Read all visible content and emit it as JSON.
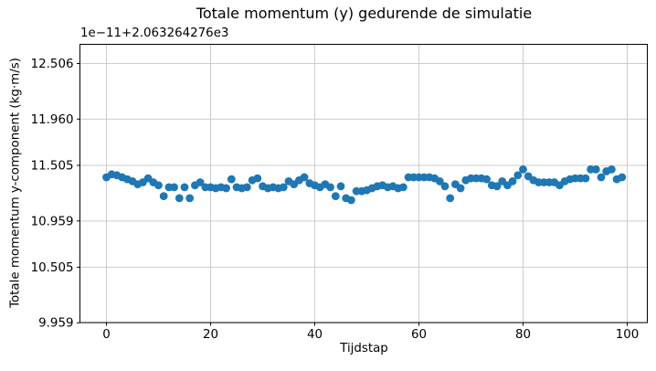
{
  "title": "Totale momentum (y) gedurende de simulatie",
  "offset_text": "1e−11+2.063264276e3",
  "xlabel": "Tijdstap",
  "ylabel": "Totale momentum y-component (kg·m/s)",
  "colors": {
    "marker": "#1f77b4",
    "grid": "#cccccc",
    "spine": "#000000",
    "background": "#ffffff"
  },
  "chart_data": {
    "type": "scatter",
    "title": "Totale momentum (y) gedurende de simulatie",
    "xlabel": "Tijdstap",
    "ylabel": "Totale momentum y-component (kg·m/s)",
    "offset_note": "1e−11+2.063264276e3",
    "grid": true,
    "legend": "none",
    "marker": "circle",
    "xticks": [
      0,
      20,
      40,
      60,
      80,
      100
    ],
    "ytick_labels": [
      "12.506",
      "11.960",
      "11.505",
      "10.959",
      "10.505",
      "9.959"
    ],
    "xlim": [
      -5.1,
      103.9
    ],
    "ylim": [
      9.957,
      12.69
    ],
    "x": [
      0,
      1,
      2,
      3,
      4,
      5,
      6,
      7,
      8,
      9,
      10,
      11,
      12,
      13,
      14,
      15,
      16,
      17,
      18,
      19,
      20,
      21,
      22,
      23,
      24,
      25,
      26,
      27,
      28,
      29,
      30,
      31,
      32,
      33,
      34,
      35,
      36,
      37,
      38,
      39,
      40,
      41,
      42,
      43,
      44,
      45,
      46,
      47,
      48,
      49,
      50,
      51,
      52,
      53,
      54,
      55,
      56,
      57,
      58,
      59,
      60,
      61,
      62,
      63,
      64,
      65,
      66,
      67,
      68,
      69,
      70,
      71,
      72,
      73,
      74,
      75,
      76,
      77,
      78,
      79,
      80,
      81,
      82,
      83,
      84,
      85,
      86,
      87,
      88,
      89,
      90,
      91,
      92,
      93,
      94,
      95,
      96,
      97,
      98,
      99
    ],
    "values": [
      11.388,
      11.417,
      11.408,
      11.388,
      11.369,
      11.349,
      11.32,
      11.339,
      11.378,
      11.339,
      11.31,
      11.203,
      11.291,
      11.291,
      11.183,
      11.291,
      11.183,
      11.31,
      11.339,
      11.291,
      11.291,
      11.281,
      11.291,
      11.281,
      11.369,
      11.291,
      11.281,
      11.291,
      11.359,
      11.378,
      11.3,
      11.281,
      11.291,
      11.281,
      11.291,
      11.349,
      11.32,
      11.359,
      11.388,
      11.33,
      11.31,
      11.291,
      11.32,
      11.291,
      11.203,
      11.3,
      11.183,
      11.164,
      11.252,
      11.252,
      11.261,
      11.281,
      11.3,
      11.31,
      11.291,
      11.3,
      11.281,
      11.291,
      11.388,
      11.388,
      11.388,
      11.388,
      11.388,
      11.378,
      11.349,
      11.3,
      11.183,
      11.32,
      11.281,
      11.359,
      11.378,
      11.378,
      11.378,
      11.369,
      11.31,
      11.3,
      11.349,
      11.31,
      11.349,
      11.408,
      11.466,
      11.398,
      11.359,
      11.339,
      11.339,
      11.339,
      11.339,
      11.31,
      11.349,
      11.369,
      11.378,
      11.378,
      11.378,
      11.466,
      11.466,
      11.388,
      11.447,
      11.466,
      11.369,
      11.388
    ]
  }
}
